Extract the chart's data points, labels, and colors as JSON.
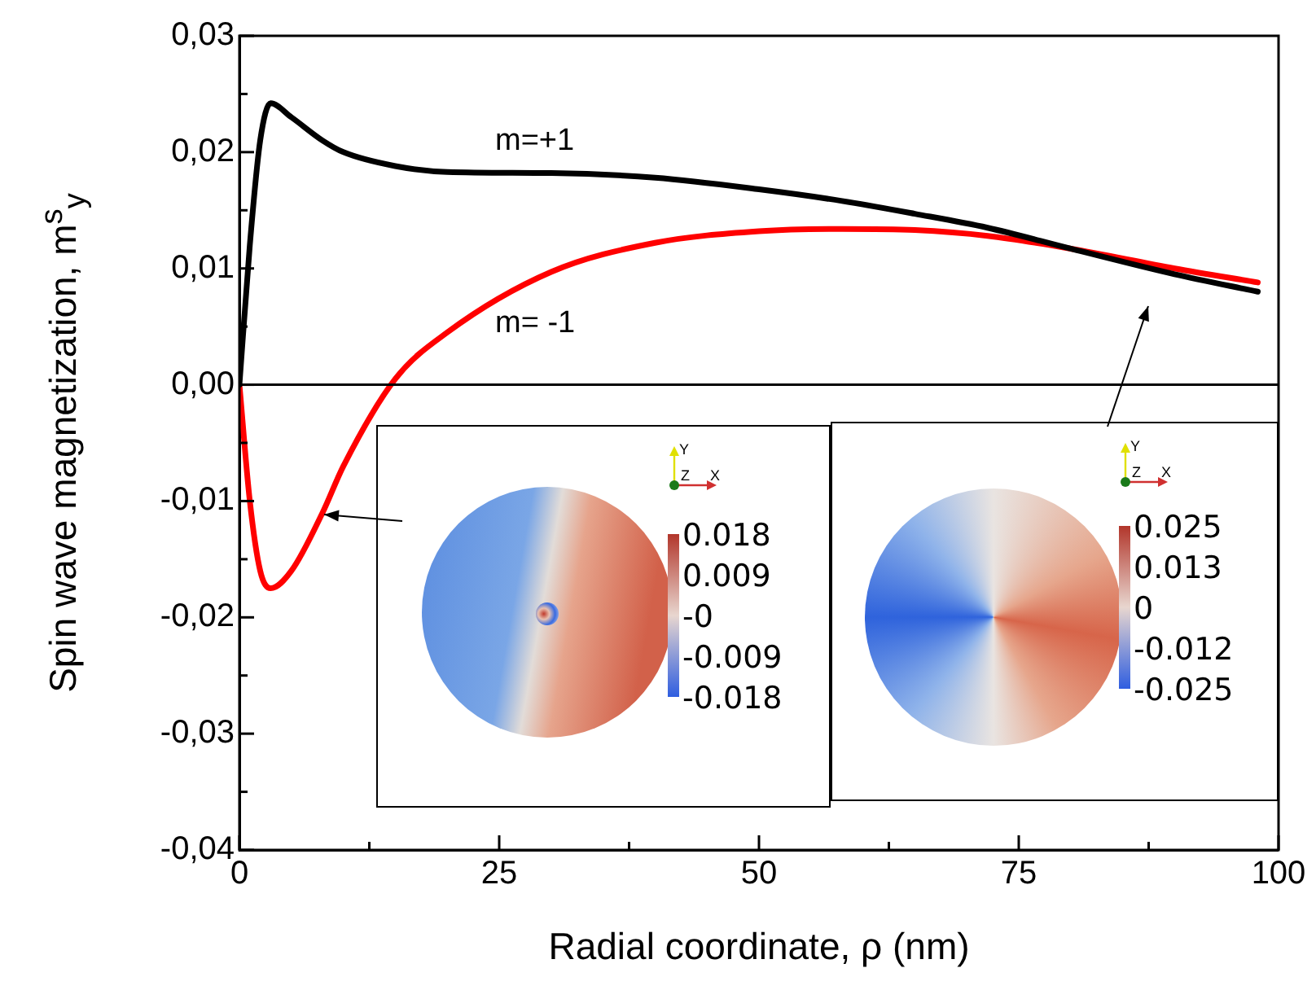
{
  "chart_data": {
    "type": "line",
    "xlabel": "Radial coordinate, ρ (nm)",
    "ylabel": "Spin wave magnetization, m$^{s}$$_{y}$",
    "xlim": [
      0,
      100
    ],
    "ylim": [
      -0.04,
      0.03
    ],
    "xticks": [
      0,
      {
        "value": 12.5,
        "label": null
      },
      25,
      {
        "value": 37.5,
        "label": null
      },
      50,
      {
        "value": 62.5,
        "label": null
      },
      75,
      {
        "value": 87.5,
        "label": null
      },
      100
    ],
    "yticks": [
      {
        "value": -0.04,
        "label": "-0,04"
      },
      {
        "value": -0.035,
        "label": null
      },
      {
        "value": -0.03,
        "label": "-0,03"
      },
      {
        "value": -0.025,
        "label": null
      },
      {
        "value": -0.02,
        "label": "-0,02"
      },
      {
        "value": -0.015,
        "label": null
      },
      {
        "value": -0.01,
        "label": "-0,01"
      },
      {
        "value": -0.005,
        "label": null
      },
      {
        "value": 0,
        "label": "0,00"
      },
      {
        "value": 0.005,
        "label": null
      },
      {
        "value": 0.01,
        "label": "0,01"
      },
      {
        "value": 0.015,
        "label": null
      },
      {
        "value": 0.02,
        "label": "0,02"
      },
      {
        "value": 0.025,
        "label": null
      },
      {
        "value": 0.03,
        "label": "0,03"
      }
    ],
    "x": [
      0,
      1,
      2,
      3,
      5,
      8,
      10,
      15,
      20,
      30,
      40,
      50,
      58,
      65,
      72,
      80,
      90,
      98
    ],
    "series": [
      {
        "color": "#000000",
        "values": [
          0,
          0.012,
          0.021,
          0.0242,
          0.023,
          0.021,
          0.02,
          0.0188,
          0.0183,
          0.0182,
          0.0178,
          0.0168,
          0.0158,
          0.0147,
          0.0135,
          0.0117,
          0.0095,
          0.008
        ]
      },
      {
        "color": "#ff0000",
        "values": [
          0,
          -0.01,
          -0.016,
          -0.0175,
          -0.016,
          -0.011,
          -0.007,
          0.0005,
          0.0045,
          0.0097,
          0.0122,
          0.0132,
          0.0134,
          0.0133,
          0.0128,
          0.0117,
          0.01,
          0.0088
        ]
      }
    ],
    "ref_lines": [
      {
        "axis": "y",
        "value": 0,
        "color": "#000000"
      }
    ],
    "grid": false,
    "legend": false,
    "annotations": [
      "m=+1",
      "m= -1",
      "0.018",
      "0.009",
      "-0",
      "-0.009",
      "-0.018",
      "Y",
      "Z",
      "X",
      "0.025",
      "0.013",
      "0",
      "-0.012",
      "-0.025",
      "Y",
      "Z",
      "X"
    ]
  }
}
